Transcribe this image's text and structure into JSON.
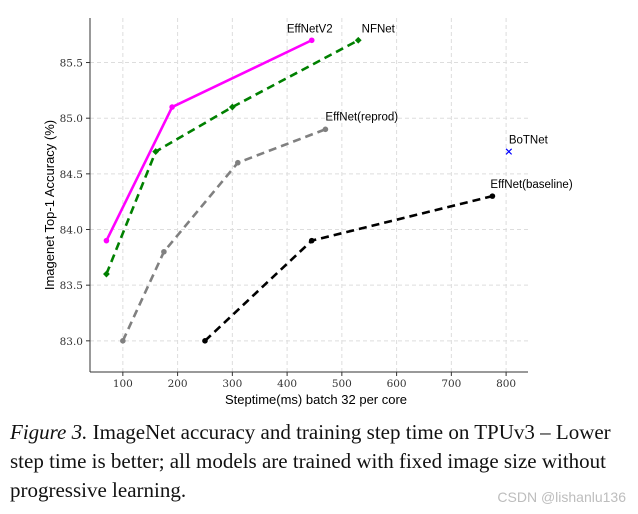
{
  "chart_data": {
    "type": "line",
    "title": "",
    "xlabel": "Steptime(ms) batch 32 per core",
    "ylabel": "Imagenet Top-1 Accuracy (%)",
    "xlim": [
      40,
      840
    ],
    "ylim": [
      82.72,
      85.9
    ],
    "xticks": [
      100,
      200,
      300,
      400,
      500,
      600,
      700,
      800
    ],
    "yticks": [
      83.0,
      83.5,
      84.0,
      84.5,
      85.0,
      85.5
    ],
    "ytick_labels": [
      "83.0",
      "83.5",
      "84.0",
      "84.5",
      "85.0",
      "85.5"
    ],
    "grid": true,
    "legend": "none",
    "series": [
      {
        "name": "EffNetV2",
        "color": "#ff00ff",
        "dash": "solid",
        "marker": "circle",
        "x": [
          70,
          190,
          445
        ],
        "y": [
          83.9,
          85.1,
          85.7
        ]
      },
      {
        "name": "NFNet",
        "color": "#008000",
        "dash": "dashed",
        "marker": "diamond",
        "x": [
          70,
          160,
          300,
          530
        ],
        "y": [
          83.6,
          84.7,
          85.1,
          85.7
        ]
      },
      {
        "name": "EffNet(reprod)",
        "color": "#808080",
        "dash": "dashed",
        "marker": "circle",
        "x": [
          100,
          175,
          310,
          470
        ],
        "y": [
          83.0,
          83.8,
          84.6,
          84.9
        ]
      },
      {
        "name": "EffNet(baseline)",
        "color": "#000000",
        "dash": "dashed",
        "marker": "circle",
        "x": [
          250,
          445,
          775
        ],
        "y": [
          83.0,
          83.9,
          84.3
        ]
      },
      {
        "name": "BoTNet",
        "color": "#0000ff",
        "dash": "none",
        "marker": "x",
        "x": [
          805
        ],
        "y": [
          84.7
        ]
      }
    ],
    "annotations": [
      {
        "text": "EffNetV2",
        "series": "EffNetV2",
        "x": 445,
        "y": 85.7
      },
      {
        "text": "NFNet",
        "series": "NFNet",
        "x": 530,
        "y": 85.7
      },
      {
        "text": "EffNet(reprod)",
        "series": "EffNet(reprod)",
        "x": 470,
        "y": 84.9
      },
      {
        "text": "BoTNet",
        "series": "BoTNet",
        "x": 805,
        "y": 84.7
      },
      {
        "text": "EffNet(baseline)",
        "series": "EffNet(baseline)",
        "x": 775,
        "y": 84.3
      }
    ]
  },
  "caption": {
    "label": "Figure 3.",
    "text": " ImageNet accuracy and training step time on TPUv3 – Lower step time is better; all models are trained with fixed image size without progressive learning."
  },
  "watermark": "CSDN @lishanlu136"
}
